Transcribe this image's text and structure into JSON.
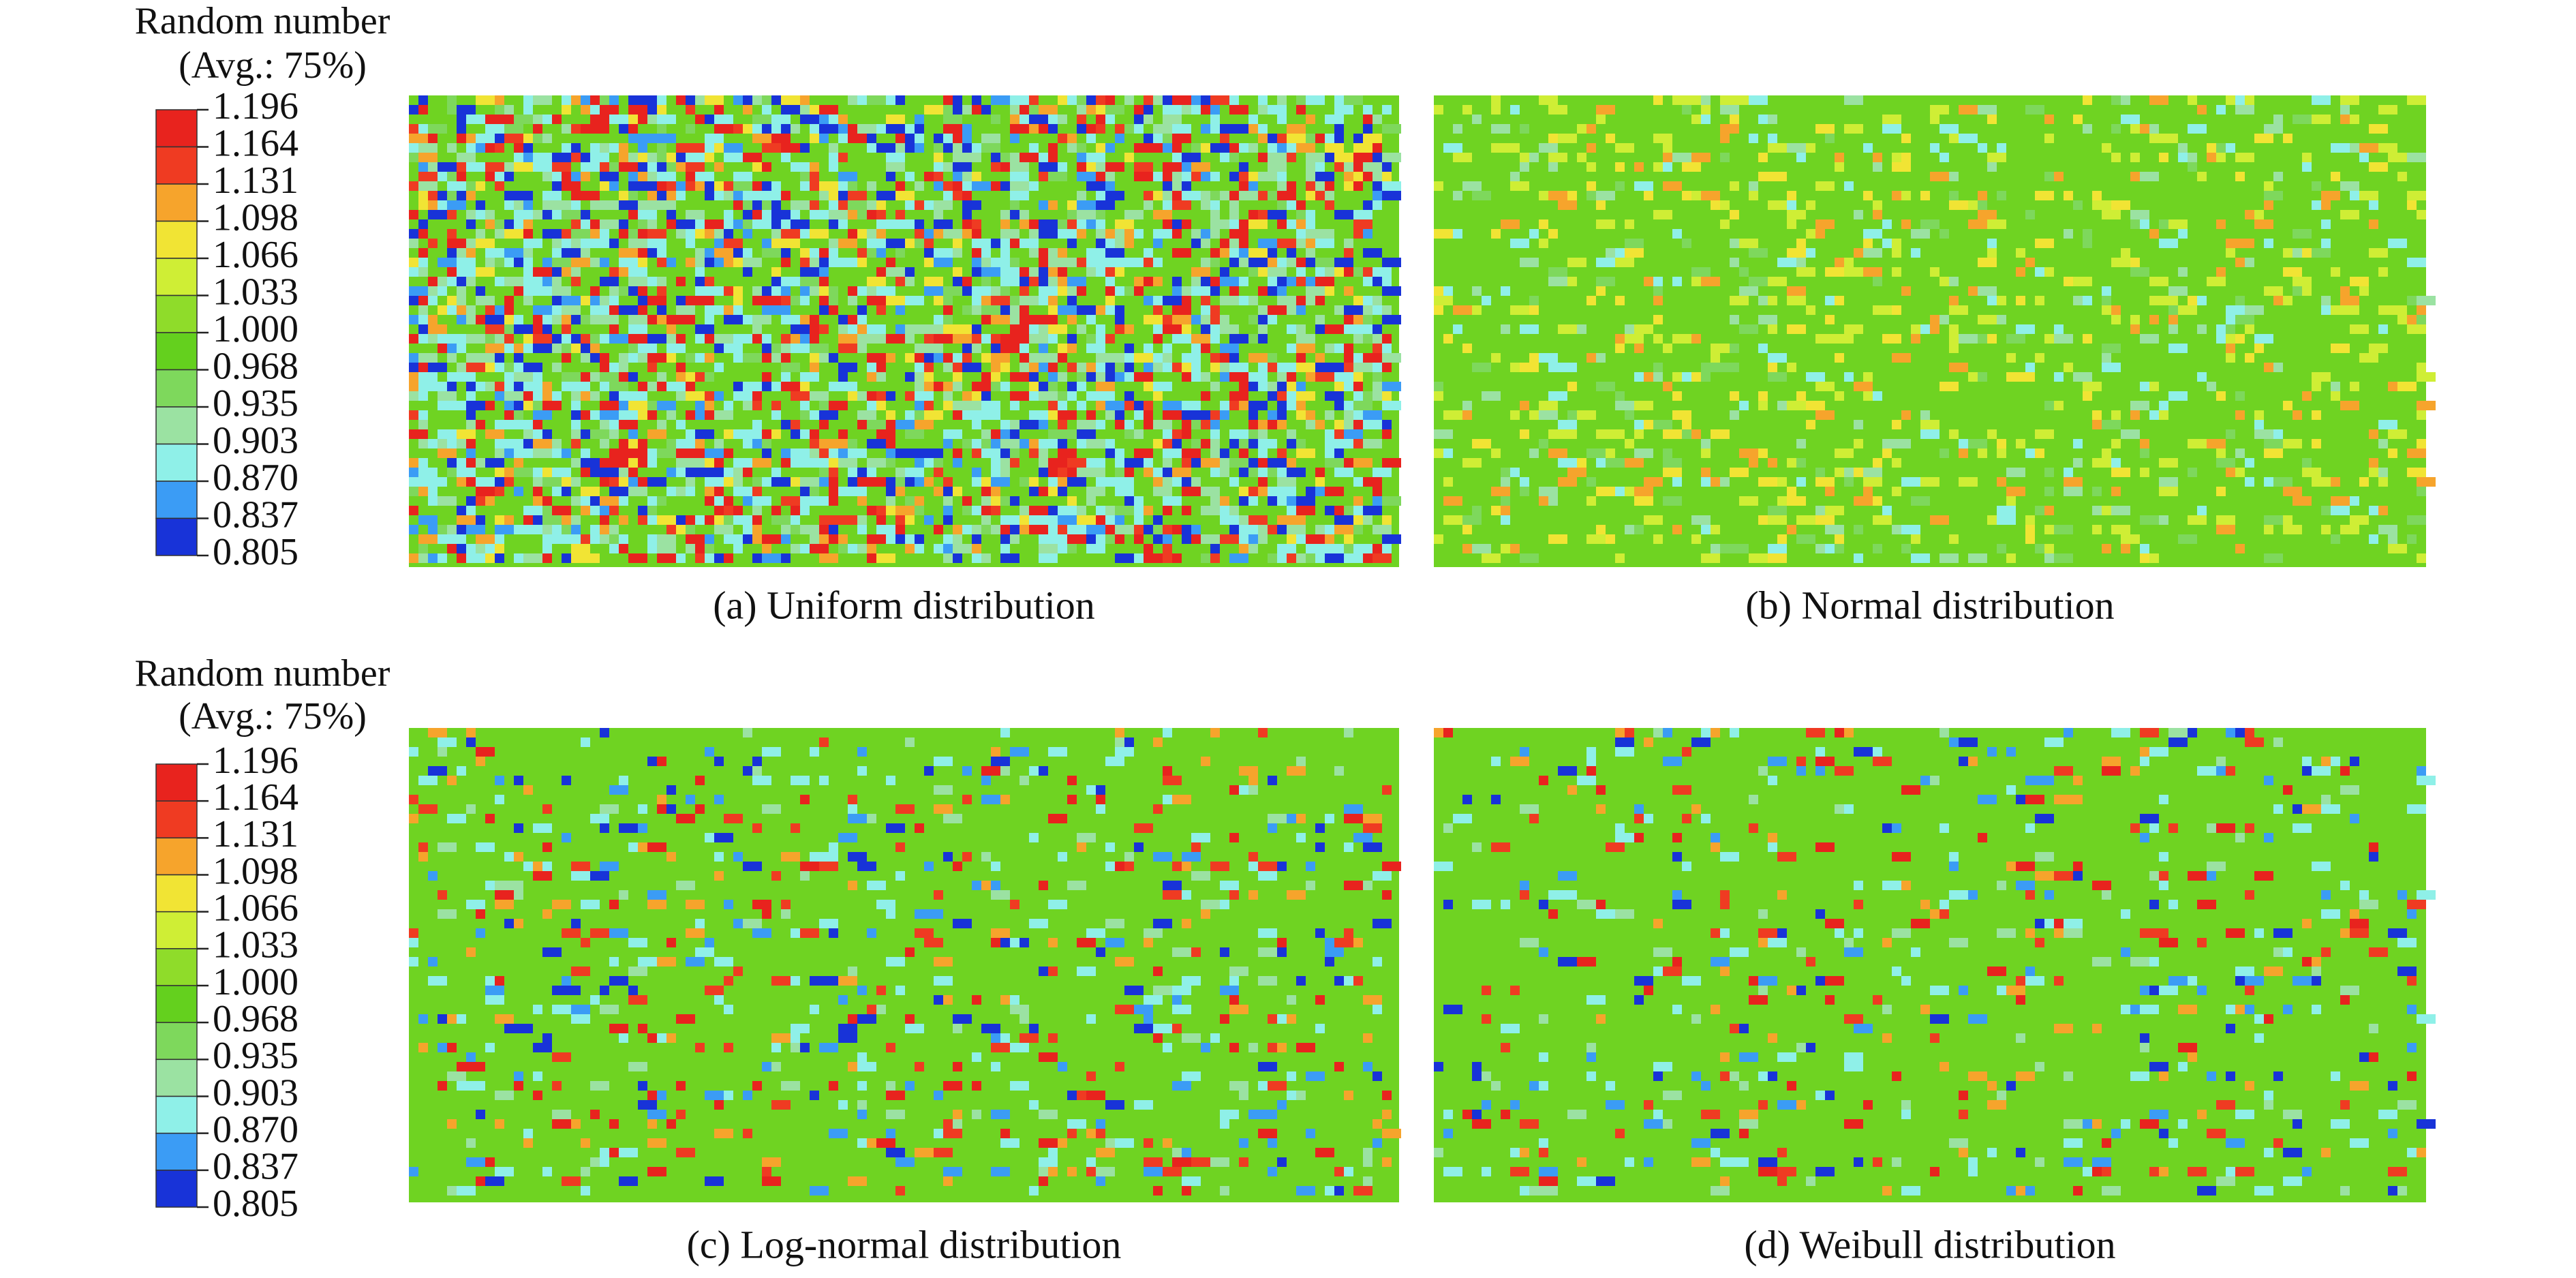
{
  "legend_colors": [
    "#e8231e",
    "#ef3b22",
    "#f6a42c",
    "#f1e434",
    "#cfee35",
    "#8fdc2a",
    "#64d01e",
    "#7ed85c",
    "#9be2a2",
    "#8ff0e8",
    "#3b9cf5",
    "#1833d8"
  ],
  "field_background": "#6fd322",
  "legends": [
    {
      "title": "Random number",
      "subtitle": "(Avg.: 75%)",
      "levels": [
        "1.196",
        "1.164",
        "1.131",
        "1.098",
        "1.066",
        "1.033",
        "1.000",
        "0.968",
        "0.935",
        "0.903",
        "0.870",
        "0.837",
        "0.805"
      ]
    },
    {
      "title": "Random number",
      "subtitle": "(Avg.: 75%)",
      "levels": [
        "1.196",
        "1.164",
        "1.131",
        "1.098",
        "1.066",
        "1.033",
        "1.000",
        "0.968",
        "0.935",
        "0.903",
        "0.870",
        "0.837",
        "0.805"
      ]
    }
  ],
  "panels": [
    {
      "caption": "(a) Uniform distribution"
    },
    {
      "caption": "(b) Normal distribution"
    },
    {
      "caption": "(c) Log-normal distribution"
    },
    {
      "caption": "(d) Weibull distribution"
    }
  ]
}
